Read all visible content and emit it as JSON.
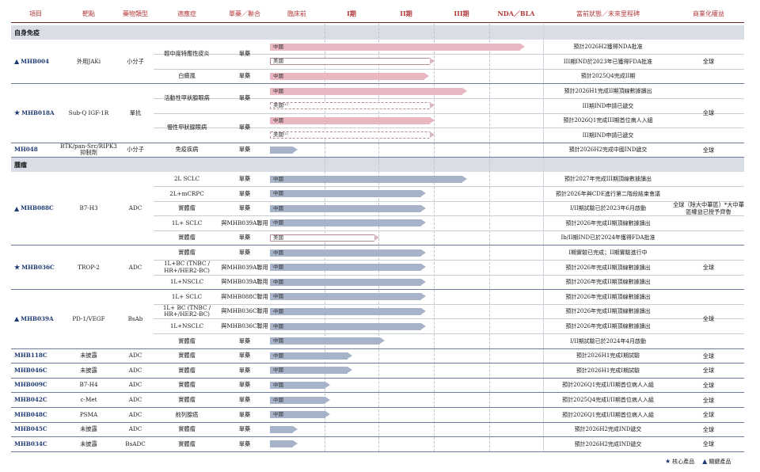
{
  "headers": [
    "項目",
    "靶點",
    "藥物類型",
    "適應症",
    "單藥／聯合",
    "臨床前",
    "I期",
    "II期",
    "III期",
    "NDA／BLA",
    "當前狀態／未來里程碑",
    "商業化權益"
  ],
  "sections": [
    {
      "label": "自身免疫",
      "startRow": 0
    },
    {
      "label": "腫瘤",
      "startRow": 9
    }
  ],
  "products": [
    {
      "name": "MHB004",
      "mark": "▲",
      "target": "外用JAKi",
      "type": "小分子",
      "rows": [
        0,
        2
      ],
      "rights": "全球"
    },
    {
      "name": "MHB018A",
      "mark": "★",
      "target": "Sub-Q IGF-1R",
      "type": "單抗",
      "rows": [
        3,
        6
      ],
      "rights": "全球"
    },
    {
      "name": "MH048",
      "mark": "",
      "target": "BTK/pan-Src/RIPK3抑制劑",
      "type": "小分子",
      "rows": [
        7,
        7
      ],
      "rights": "全球"
    },
    {
      "name": "MHB088C",
      "mark": "▲",
      "target": "B7-H3",
      "type": "ADC",
      "rows": [
        8,
        12
      ],
      "rights": "全球（除大中華區）*大中華區權益已授予齊魯"
    },
    {
      "name": "MHB036C",
      "mark": "★",
      "target": "TROP-2",
      "type": "ADC",
      "rows": [
        13,
        15
      ],
      "rights": "全球"
    },
    {
      "name": "MHB039A",
      "mark": "▲",
      "target": "PD-1/VEGF",
      "type": "BsAb",
      "rows": [
        16,
        19
      ],
      "rights": "全球"
    },
    {
      "name": "MHB118C",
      "mark": "",
      "target": "未披露",
      "type": "ADC",
      "rows": [
        20,
        20
      ],
      "rights": "全球"
    },
    {
      "name": "MHB046C",
      "mark": "",
      "target": "未披露",
      "type": "ADC",
      "rows": [
        21,
        21
      ],
      "rights": "全球"
    },
    {
      "name": "MHB009C",
      "mark": "",
      "target": "B7-H4",
      "type": "ADC",
      "rows": [
        22,
        22
      ],
      "rights": "全球"
    },
    {
      "name": "MHB042C",
      "mark": "",
      "target": "c-Met",
      "type": "ADC",
      "rows": [
        23,
        23
      ],
      "rights": "全球"
    },
    {
      "name": "MHB048C",
      "mark": "",
      "target": "PSMA",
      "type": "ADC",
      "rows": [
        24,
        24
      ],
      "rights": "全球"
    },
    {
      "name": "MHB045C",
      "mark": "",
      "target": "未披露",
      "type": "ADC",
      "rows": [
        25,
        25
      ],
      "rights": "全球"
    },
    {
      "name": "MHB034C",
      "mark": "",
      "target": "未披露",
      "type": "BsADC",
      "rows": [
        26,
        26
      ],
      "rights": "全球"
    }
  ],
  "indications": [
    {
      "label": "輕中度特應性皮炎",
      "rows": [
        0,
        1
      ]
    },
    {
      "label": "白癜風",
      "rows": [
        2,
        2
      ]
    },
    {
      "label": "活動性甲狀腺眼病",
      "rows": [
        3,
        4
      ]
    },
    {
      "label": "慢性甲狀腺眼病",
      "rows": [
        5,
        6
      ]
    },
    {
      "label": "免疫疾病",
      "rows": [
        7,
        7
      ]
    },
    {
      "label": "2L SCLC",
      "rows": [
        8,
        8
      ]
    },
    {
      "label": "2L+mCRPC",
      "rows": [
        9,
        9
      ]
    },
    {
      "label": "實體瘤",
      "rows": [
        10,
        10
      ]
    },
    {
      "label": "1L+ SCLC",
      "rows": [
        11,
        11
      ]
    },
    {
      "label": "實體瘤",
      "rows": [
        12,
        12
      ]
    },
    {
      "label": "實體瘤",
      "rows": [
        13,
        13
      ]
    },
    {
      "label": "1L+BC (TNBC / HR+/HER2-BC)",
      "rows": [
        14,
        14
      ]
    },
    {
      "label": "1L+NSCLC",
      "rows": [
        15,
        15
      ]
    },
    {
      "label": "1L+ SCLC",
      "rows": [
        16,
        16
      ]
    },
    {
      "label": "1L+ BC (TNBC / HR+/HER2-BC)",
      "rows": [
        17,
        17
      ]
    },
    {
      "label": "1L+NSCLC",
      "rows": [
        18,
        18
      ]
    },
    {
      "label": "實體瘤",
      "rows": [
        19,
        19
      ]
    },
    {
      "label": "實體瘤",
      "rows": [
        20,
        20
      ]
    },
    {
      "label": "實體瘤",
      "rows": [
        21,
        21
      ]
    },
    {
      "label": "實體瘤",
      "rows": [
        22,
        22
      ]
    },
    {
      "label": "實體瘤",
      "rows": [
        23,
        23
      ]
    },
    {
      "label": "前列腺癌",
      "rows": [
        24,
        24
      ]
    },
    {
      "label": "實體瘤",
      "rows": [
        25,
        25
      ]
    },
    {
      "label": "實體瘤",
      "rows": [
        26,
        26
      ]
    }
  ],
  "combos": [
    {
      "label": "單藥",
      "rows": [
        0,
        1
      ]
    },
    {
      "label": "單藥",
      "rows": [
        2,
        2
      ]
    },
    {
      "label": "單藥",
      "rows": [
        3,
        4
      ]
    },
    {
      "label": "單藥",
      "rows": [
        5,
        6
      ]
    },
    {
      "label": "單藥",
      "rows": [
        7,
        7
      ]
    },
    {
      "label": "單藥",
      "rows": [
        8,
        8
      ]
    },
    {
      "label": "單藥",
      "rows": [
        9,
        9
      ]
    },
    {
      "label": "單藥",
      "rows": [
        10,
        10
      ]
    },
    {
      "label": "與MHB039A聯用",
      "rows": [
        11,
        11
      ]
    },
    {
      "label": "單藥",
      "rows": [
        12,
        12
      ]
    },
    {
      "label": "單藥",
      "rows": [
        13,
        13
      ]
    },
    {
      "label": "與MHB039A聯用",
      "rows": [
        14,
        14
      ]
    },
    {
      "label": "與MHB039A聯用",
      "rows": [
        15,
        15
      ]
    },
    {
      "label": "與MHB088C聯用",
      "rows": [
        16,
        16
      ]
    },
    {
      "label": "與MHB036C聯用",
      "rows": [
        17,
        17
      ]
    },
    {
      "label": "與MHB036C聯用",
      "rows": [
        18,
        18
      ]
    },
    {
      "label": "單藥",
      "rows": [
        19,
        19
      ]
    },
    {
      "label": "單藥",
      "rows": [
        20,
        20
      ]
    },
    {
      "label": "單藥",
      "rows": [
        21,
        21
      ]
    },
    {
      "label": "單藥",
      "rows": [
        22,
        22
      ]
    },
    {
      "label": "單藥",
      "rows": [
        23,
        23
      ]
    },
    {
      "label": "單藥",
      "rows": [
        24,
        24
      ]
    },
    {
      "label": "單藥",
      "rows": [
        25,
        25
      ]
    },
    {
      "label": "單藥",
      "rows": [
        26,
        26
      ]
    }
  ],
  "pipeline": [
    {
      "region": "中國",
      "progress": 0.93,
      "style": "pink",
      "status": "預計2026H2獲得NDA批准"
    },
    {
      "region": "美國",
      "progress": 0.6,
      "style": "outline",
      "status": "III期IND於2023年已獲得FDA批准"
    },
    {
      "region": "中國",
      "progress": 0.58,
      "style": "pink",
      "status": "預計2025Q4完成II期"
    },
    {
      "region": "中國",
      "progress": 0.72,
      "style": "pink",
      "status": "預計2026H1完成II期頂線數據讀出"
    },
    {
      "region": "美國⁽¹⁾",
      "progress": 0.6,
      "style": "dashed",
      "status": "III期IND申請已遞交"
    },
    {
      "region": "中國",
      "progress": 0.6,
      "style": "pink",
      "status": "預計2026Q1完成III期首位病人入組"
    },
    {
      "region": "美國⁽¹⁾",
      "progress": 0.6,
      "style": "dashed",
      "status": "III期IND申請已遞交"
    },
    {
      "region": "",
      "progress": 0.1,
      "style": "blue",
      "status": "預計2026H2完成中國IND遞交"
    },
    {
      "region": "中國",
      "progress": 0.72,
      "style": "blue",
      "status": "預計2027年完成III期頂線數據讀出"
    },
    {
      "region": "中國",
      "progress": 0.57,
      "style": "blue",
      "status": "預計2026年與CDE進行第二階段結束會議"
    },
    {
      "region": "中國",
      "progress": 0.57,
      "style": "blue",
      "status": "I/II期試驗已於2023年6月啟動"
    },
    {
      "region": "中國",
      "progress": 0.57,
      "style": "blue",
      "status": "預計2026年完成II期頂線數據讀出"
    },
    {
      "region": "美國",
      "progress": 0.4,
      "style": "outline",
      "status": "Ib/II期IND已於2024年獲得FDA批准"
    },
    {
      "region": "中國",
      "progress": 0.57,
      "style": "blue",
      "status": "I期實驗已完成；II期實驗進行中"
    },
    {
      "region": "中國",
      "progress": 0.57,
      "style": "blue",
      "status": "預計2026年完成II期頂線數據讀出"
    },
    {
      "region": "中國",
      "progress": 0.57,
      "style": "blue",
      "status": "預計2026年完成II期頂線數據讀出"
    },
    {
      "region": "中國",
      "progress": 0.57,
      "style": "blue",
      "status": "預計2026年完成II期頂線數據讀出"
    },
    {
      "region": "中國",
      "progress": 0.57,
      "style": "blue",
      "status": "預計2026年完成II期頂線數據讀出"
    },
    {
      "region": "中國",
      "progress": 0.57,
      "style": "blue",
      "status": "預計2026年完成II期頂線數據讀出"
    },
    {
      "region": "中國",
      "progress": 0.42,
      "style": "blue",
      "status": "I/II期試驗已於2024年4月啟動"
    },
    {
      "region": "中國",
      "progress": 0.3,
      "style": "blue",
      "status": "預計2026H1完成I期試驗"
    },
    {
      "region": "中國",
      "progress": 0.3,
      "style": "blue",
      "status": "預計2026H1完成I期試驗"
    },
    {
      "region": "中國",
      "progress": 0.22,
      "style": "blue",
      "status": "預計2026Q1完成I/II期首位病人入組"
    },
    {
      "region": "中國",
      "progress": 0.22,
      "style": "blue",
      "status": "預計2025Q4完成I/II期首位病人入組"
    },
    {
      "region": "中國",
      "progress": 0.22,
      "style": "blue",
      "status": "預計2026Q1完成I/II期首位病人入組"
    },
    {
      "region": "",
      "progress": 0.1,
      "style": "blue",
      "status": "預計2026H2完成IND遞交"
    },
    {
      "region": "",
      "progress": 0.1,
      "style": "blue",
      "status": "預計2026H2完成IND遞交"
    }
  ],
  "legend": {
    "star": "★",
    "star_label": "核心產品",
    "tri": "▲",
    "tri_label": "關鍵產品"
  },
  "colors": {
    "pink": "#e8b7c1",
    "blue": "#a7b3c8",
    "header_red": "#b33a3a",
    "product_blue": "#1f3b73",
    "section_bg": "#d9dde6"
  }
}
